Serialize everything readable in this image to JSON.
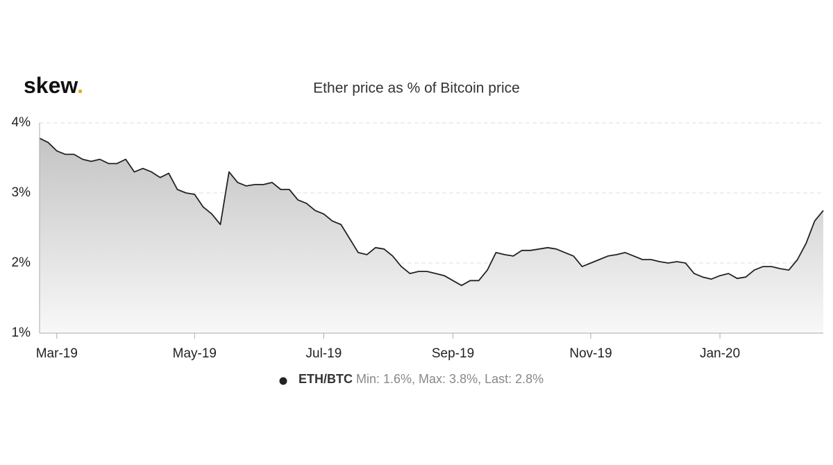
{
  "logo": {
    "text": "skew",
    "dot": "."
  },
  "chart_data": {
    "type": "line",
    "title": "Ether price as % of Bitcoin price",
    "categories": [
      null,
      null,
      "Mar-19",
      null,
      null,
      null,
      null,
      null,
      null,
      null,
      null,
      null,
      null,
      null,
      null,
      null,
      null,
      null,
      "May-19",
      null,
      null,
      null,
      null,
      null,
      null,
      null,
      null,
      null,
      null,
      null,
      null,
      null,
      null,
      "Jul-19",
      null,
      null,
      null,
      null,
      null,
      null,
      null,
      null,
      null,
      null,
      null,
      null,
      null,
      null,
      "Sep-19",
      null,
      null,
      null,
      null,
      null,
      null,
      null,
      null,
      null,
      null,
      null,
      null,
      null,
      null,
      null,
      "Nov-19",
      null,
      null,
      null,
      null,
      null,
      null,
      null,
      null,
      null,
      null,
      null,
      null,
      null,
      null,
      "Jan-20",
      null,
      null,
      null,
      null,
      null,
      null,
      null,
      null,
      null,
      null,
      null,
      null
    ],
    "series": [
      {
        "name": "ETH/BTC",
        "color": "#222222",
        "stats": "Min: 1.6%, Max: 3.8%, Last: 2.8%",
        "values": [
          3.78,
          3.72,
          3.6,
          3.55,
          3.55,
          3.48,
          3.45,
          3.48,
          3.42,
          3.42,
          3.48,
          3.3,
          3.35,
          3.3,
          3.22,
          3.28,
          3.05,
          3.0,
          2.98,
          2.8,
          2.7,
          2.55,
          3.3,
          3.15,
          3.1,
          3.12,
          3.12,
          3.15,
          3.05,
          3.05,
          2.9,
          2.85,
          2.75,
          2.7,
          2.6,
          2.55,
          2.35,
          2.15,
          2.12,
          2.22,
          2.2,
          2.1,
          1.95,
          1.85,
          1.88,
          1.88,
          1.85,
          1.82,
          1.75,
          1.68,
          1.75,
          1.75,
          1.9,
          2.15,
          2.12,
          2.1,
          2.18,
          2.18,
          2.2,
          2.22,
          2.2,
          2.15,
          2.1,
          1.95,
          2.0,
          2.05,
          2.1,
          2.12,
          2.15,
          2.1,
          2.05,
          2.05,
          2.02,
          2.0,
          2.02,
          2.0,
          1.85,
          1.8,
          1.77,
          1.82,
          1.85,
          1.78,
          1.8,
          1.9,
          1.95,
          1.95,
          1.92,
          1.9,
          2.05,
          2.28,
          2.6,
          2.75
        ]
      }
    ],
    "ylim": [
      1,
      4
    ],
    "yticks": [
      {
        "value": 1,
        "label": "1%"
      },
      {
        "value": 2,
        "label": "2%"
      },
      {
        "value": 3,
        "label": "3%"
      },
      {
        "value": 4,
        "label": "4%"
      }
    ],
    "grid": true
  }
}
